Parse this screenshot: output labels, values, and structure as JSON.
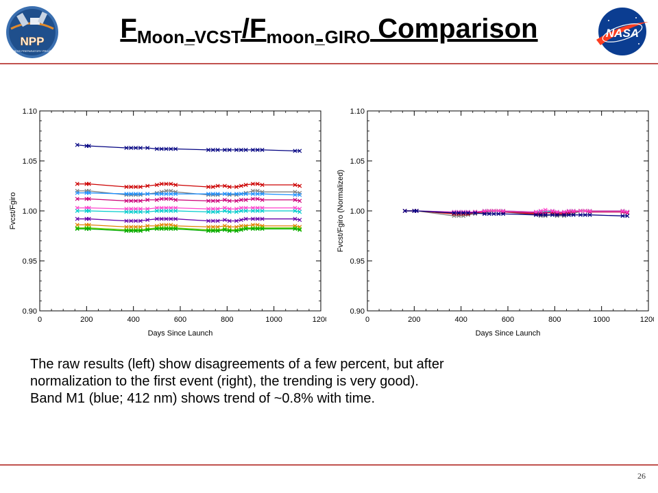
{
  "slide": {
    "title_main1": "F",
    "title_sub1": "Moon_VCST",
    "title_main2": "/F",
    "title_sub2": "moon_GIRO",
    "title_main3": " Comparison",
    "caption_lines": [
      "The raw results (left) show disagreements of a few percent, but after",
      "normalization to the first event (right), the trending is very good).",
      "Band M1 (blue; 412 nm) shows trend of ~0.8% with time."
    ],
    "page_number": "26",
    "npp_logo_text": "NPP",
    "npp_logo_subtext": "NPOESS PREPARATORY PROJECT",
    "nasa_logo_text": "NASA",
    "colors": {
      "rule": "#c0504d",
      "npp_blue": "#3a6fb0",
      "npp_orange": "#e08a2c",
      "nasa_blue": "#0b3d91",
      "nasa_red": "#fc3d21"
    }
  },
  "chart_data": [
    {
      "type": "line",
      "xlabel": "Days Since Launch",
      "ylabel": "Fvcst/Fgiro",
      "xlim": [
        0,
        1200
      ],
      "ylim": [
        0.9,
        1.1
      ],
      "xticks": [
        0,
        200,
        400,
        600,
        800,
        1000,
        1200
      ],
      "yticks": [
        0.9,
        0.95,
        1.0,
        1.05,
        1.1
      ],
      "ytick_labels": [
        "0.90",
        "0.95",
        "1.00",
        "1.05",
        "1.10"
      ],
      "x": [
        160,
        200,
        210,
        370,
        390,
        410,
        430,
        460,
        500,
        520,
        540,
        560,
        580,
        720,
        740,
        760,
        790,
        810,
        840,
        860,
        880,
        910,
        930,
        950,
        1090,
        1110
      ],
      "series": [
        {
          "color": "#000080",
          "values": [
            1.066,
            1.065,
            1.065,
            1.063,
            1.063,
            1.063,
            1.063,
            1.063,
            1.062,
            1.062,
            1.062,
            1.062,
            1.062,
            1.061,
            1.061,
            1.061,
            1.061,
            1.061,
            1.061,
            1.061,
            1.061,
            1.061,
            1.061,
            1.061,
            1.06,
            1.06
          ]
        },
        {
          "color": "#cc0000",
          "values": [
            1.027,
            1.027,
            1.027,
            1.024,
            1.024,
            1.024,
            1.024,
            1.025,
            1.026,
            1.027,
            1.027,
            1.027,
            1.026,
            1.024,
            1.024,
            1.025,
            1.025,
            1.024,
            1.024,
            1.025,
            1.026,
            1.027,
            1.027,
            1.026,
            1.026,
            1.025
          ]
        },
        {
          "color": "#808080",
          "values": [
            1.02,
            1.02,
            1.02,
            1.016,
            1.016,
            1.016,
            1.016,
            1.017,
            1.018,
            1.019,
            1.02,
            1.02,
            1.019,
            1.016,
            1.016,
            1.016,
            1.017,
            1.016,
            1.016,
            1.017,
            1.018,
            1.02,
            1.02,
            1.019,
            1.019,
            1.018
          ]
        },
        {
          "color": "#1e90ff",
          "values": [
            1.018,
            1.018,
            1.018,
            1.017,
            1.017,
            1.017,
            1.017,
            1.017,
            1.017,
            1.017,
            1.017,
            1.017,
            1.017,
            1.017,
            1.017,
            1.017,
            1.017,
            1.017,
            1.017,
            1.017,
            1.017,
            1.017,
            1.017,
            1.017,
            1.016,
            1.016
          ]
        },
        {
          "color": "#cc0077",
          "values": [
            1.012,
            1.012,
            1.012,
            1.01,
            1.01,
            1.01,
            1.01,
            1.011,
            1.011,
            1.012,
            1.012,
            1.012,
            1.011,
            1.01,
            1.01,
            1.01,
            1.011,
            1.01,
            1.01,
            1.011,
            1.011,
            1.012,
            1.012,
            1.011,
            1.011,
            1.01
          ]
        },
        {
          "color": "#ff44cc",
          "values": [
            1.003,
            1.003,
            1.003,
            1.002,
            1.002,
            1.002,
            1.002,
            1.002,
            1.003,
            1.003,
            1.003,
            1.003,
            1.003,
            1.002,
            1.002,
            1.002,
            1.003,
            1.002,
            1.002,
            1.003,
            1.003,
            1.003,
            1.003,
            1.003,
            1.003,
            1.002
          ]
        },
        {
          "color": "#00cccc",
          "values": [
            1.0,
            1.0,
            1.0,
            0.999,
            0.999,
            0.999,
            0.999,
            0.999,
            1.0,
            1.0,
            1.0,
            1.0,
            1.0,
            0.999,
            0.999,
            0.999,
            1.0,
            0.999,
            0.999,
            1.0,
            1.0,
            1.0,
            1.0,
            1.0,
            1.0,
            0.999
          ]
        },
        {
          "color": "#6600aa",
          "values": [
            0.992,
            0.992,
            0.992,
            0.99,
            0.99,
            0.99,
            0.99,
            0.991,
            0.992,
            0.992,
            0.992,
            0.992,
            0.992,
            0.99,
            0.99,
            0.99,
            0.991,
            0.99,
            0.99,
            0.991,
            0.992,
            0.992,
            0.992,
            0.992,
            0.992,
            0.991
          ]
        },
        {
          "color": "#e08000",
          "values": [
            0.986,
            0.986,
            0.986,
            0.984,
            0.984,
            0.984,
            0.984,
            0.985,
            0.985,
            0.986,
            0.986,
            0.986,
            0.985,
            0.984,
            0.984,
            0.984,
            0.985,
            0.984,
            0.984,
            0.985,
            0.985,
            0.986,
            0.986,
            0.985,
            0.985,
            0.984
          ]
        },
        {
          "color": "#66cc00",
          "values": [
            0.983,
            0.983,
            0.983,
            0.981,
            0.981,
            0.981,
            0.981,
            0.982,
            0.983,
            0.983,
            0.983,
            0.983,
            0.983,
            0.981,
            0.981,
            0.981,
            0.982,
            0.981,
            0.981,
            0.982,
            0.983,
            0.983,
            0.983,
            0.983,
            0.983,
            0.982
          ]
        },
        {
          "color": "#00aa00",
          "values": [
            0.982,
            0.982,
            0.982,
            0.98,
            0.98,
            0.98,
            0.98,
            0.981,
            0.982,
            0.982,
            0.982,
            0.982,
            0.982,
            0.98,
            0.98,
            0.98,
            0.981,
            0.98,
            0.98,
            0.981,
            0.982,
            0.982,
            0.982,
            0.982,
            0.982,
            0.981
          ]
        }
      ]
    },
    {
      "type": "line",
      "xlabel": "Days Since Launch",
      "ylabel": "Fvcst/Fgiro (Normalized)",
      "xlim": [
        0,
        1200
      ],
      "ylim": [
        0.9,
        1.1
      ],
      "xticks": [
        0,
        200,
        400,
        600,
        800,
        1000,
        1200
      ],
      "yticks": [
        0.9,
        0.95,
        1.0,
        1.05,
        1.1
      ],
      "ytick_labels": [
        "0.90",
        "0.95",
        "1.00",
        "1.05",
        "1.10"
      ],
      "x": [
        160,
        200,
        210,
        370,
        390,
        410,
        430,
        460,
        500,
        520,
        540,
        560,
        580,
        720,
        740,
        760,
        790,
        810,
        840,
        860,
        880,
        910,
        930,
        950,
        1090,
        1110
      ],
      "series": [
        {
          "color": "#808080",
          "values": [
            1.0,
            1.0,
            1.0,
            0.995,
            0.995,
            0.995,
            0.996,
            0.997,
            0.998,
            0.999,
            1.0,
            1.0,
            0.999,
            0.996,
            0.995,
            0.995,
            0.996,
            0.995,
            0.995,
            0.996,
            0.997,
            1.0,
            1.0,
            0.999,
            0.999,
            0.998
          ]
        },
        {
          "color": "#e08000",
          "values": [
            1.0,
            1.0,
            1.0,
            0.998,
            0.998,
            0.998,
            0.998,
            0.999,
            0.999,
            1.0,
            1.0,
            1.0,
            0.999,
            0.998,
            0.998,
            0.998,
            0.999,
            0.998,
            0.998,
            0.999,
            0.999,
            1.0,
            1.0,
            0.999,
            0.999,
            0.998
          ]
        },
        {
          "color": "#cc0000",
          "values": [
            1.0,
            1.0,
            1.0,
            0.997,
            0.997,
            0.997,
            0.997,
            0.998,
            0.999,
            1.0,
            1.0,
            1.0,
            0.999,
            0.997,
            0.997,
            0.998,
            0.998,
            0.997,
            0.997,
            0.998,
            0.999,
            1.0,
            1.0,
            0.999,
            0.999,
            0.998
          ]
        },
        {
          "color": "#00aa00",
          "values": [
            1.0,
            1.0,
            1.0,
            0.998,
            0.998,
            0.998,
            0.998,
            0.999,
            1.0,
            1.0,
            1.0,
            1.0,
            1.0,
            0.998,
            0.998,
            0.998,
            0.999,
            0.998,
            0.998,
            0.999,
            1.0,
            1.0,
            1.0,
            1.0,
            1.0,
            0.999
          ]
        },
        {
          "color": "#00cccc",
          "values": [
            1.0,
            1.0,
            1.0,
            0.999,
            0.999,
            0.999,
            0.999,
            0.999,
            1.0,
            1.0,
            1.0,
            1.0,
            1.0,
            0.999,
            0.999,
            0.999,
            1.0,
            0.999,
            0.999,
            1.0,
            1.0,
            1.0,
            1.0,
            1.0,
            1.0,
            0.999
          ]
        },
        {
          "color": "#cc0077",
          "values": [
            1.0,
            1.0,
            1.0,
            0.998,
            0.998,
            0.998,
            0.998,
            0.999,
            0.999,
            1.0,
            1.0,
            1.0,
            0.999,
            0.998,
            0.998,
            0.998,
            0.999,
            0.998,
            0.998,
            0.999,
            0.999,
            1.0,
            1.0,
            0.999,
            0.999,
            0.998
          ]
        },
        {
          "color": "#ff44cc",
          "values": [
            1.0,
            1.0,
            1.0,
            0.999,
            0.999,
            0.999,
            0.999,
            0.999,
            1.0,
            1.0,
            1.0,
            1.0,
            1.0,
            0.999,
            1.0,
            1.001,
            1.0,
            0.999,
            0.999,
            1.0,
            1.0,
            1.0,
            1.0,
            1.0,
            1.0,
            0.999
          ]
        },
        {
          "color": "#000080",
          "values": [
            1.0,
            1.0,
            1.0,
            0.998,
            0.998,
            0.998,
            0.998,
            0.998,
            0.997,
            0.997,
            0.997,
            0.997,
            0.997,
            0.996,
            0.996,
            0.996,
            0.996,
            0.996,
            0.996,
            0.996,
            0.996,
            0.996,
            0.996,
            0.996,
            0.995,
            0.995
          ]
        }
      ]
    }
  ]
}
